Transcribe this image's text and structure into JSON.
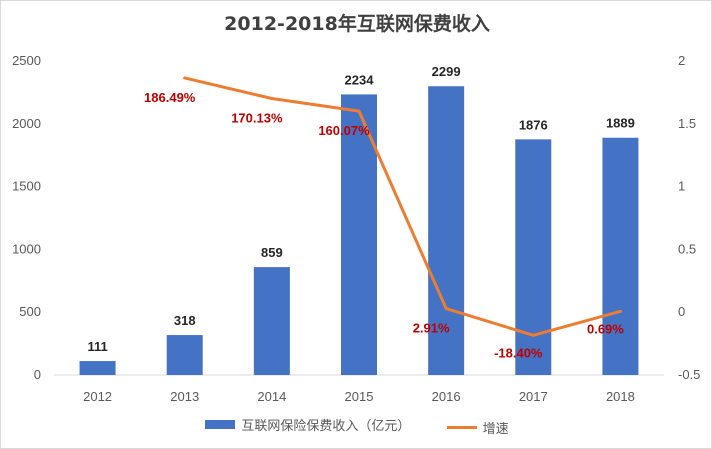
{
  "chart_data": {
    "type": "bar",
    "title": "2012-2018年互联网保费收入",
    "categories": [
      "2012",
      "2013",
      "2014",
      "2015",
      "2016",
      "2017",
      "2018"
    ],
    "series": [
      {
        "name": "互联网保险保费收入（亿元）",
        "type": "bar",
        "axis": "left",
        "color": "#4472c4",
        "values": [
          111,
          318,
          859,
          2234,
          2299,
          1876,
          1889
        ],
        "labels": [
          "111",
          "318",
          "859",
          "2234",
          "2299",
          "1876",
          "1889"
        ]
      },
      {
        "name": "增速",
        "type": "line",
        "axis": "right",
        "color": "#ed7d31",
        "values": [
          null,
          1.8649,
          1.7013,
          1.6007,
          0.0291,
          -0.184,
          0.0069
        ],
        "labels": [
          "",
          "186.49%",
          "170.13%",
          "160.07%",
          "2.91%",
          "-18.40%",
          "0.69%"
        ]
      }
    ],
    "y_left": {
      "min": 0,
      "max": 2500,
      "ticks": [
        "0",
        "500",
        "1000",
        "1500",
        "2000",
        "2500"
      ]
    },
    "y_right": {
      "min": -0.5,
      "max": 2,
      "ticks": [
        "-0.5",
        "0",
        "0.5",
        "1",
        "1.5",
        "2"
      ]
    },
    "label_color_pct": "#c00000",
    "grid": false,
    "legend_position": "bottom"
  }
}
